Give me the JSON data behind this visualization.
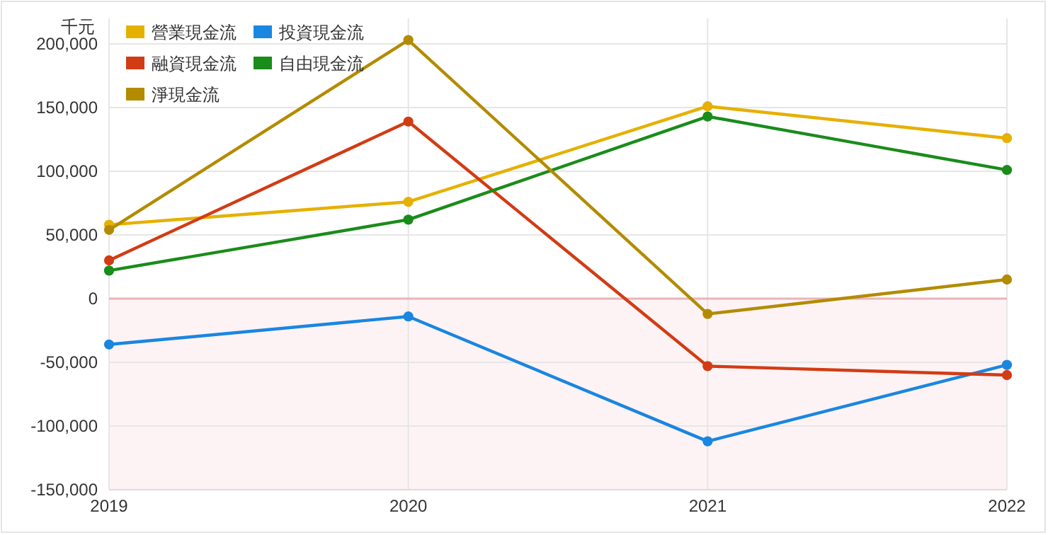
{
  "chart_data": {
    "type": "line",
    "ylabel": "千元",
    "categories": [
      "2019",
      "2020",
      "2021",
      "2022"
    ],
    "series": [
      {
        "name": "營業現金流",
        "color": "#e6b000",
        "values": [
          58000,
          76000,
          151000,
          126000
        ]
      },
      {
        "name": "投資現金流",
        "color": "#1a86e0",
        "values": [
          -36000,
          -14000,
          -112000,
          -52000
        ]
      },
      {
        "name": "融資現金流",
        "color": "#d23c14",
        "values": [
          30000,
          139000,
          -53000,
          -60000
        ]
      },
      {
        "name": "自由現金流",
        "color": "#1a8c1a",
        "values": [
          22000,
          62000,
          143000,
          101000
        ]
      },
      {
        "name": "淨現金流",
        "color": "#b38b00",
        "values": [
          54000,
          203000,
          -12000,
          15000
        ]
      }
    ],
    "ylim": [
      -150000,
      220000
    ],
    "yticks": [
      {
        "value": -150000,
        "label": "-150,000"
      },
      {
        "value": -100000,
        "label": "-100,000"
      },
      {
        "value": -50000,
        "label": "-50,000"
      },
      0,
      {
        "value": 50000,
        "label": "50,000"
      },
      {
        "value": 100000,
        "label": "100,000"
      },
      {
        "value": 150000,
        "label": "150,000"
      },
      {
        "value": 200000,
        "label": "200,000"
      }
    ],
    "grid": true,
    "legend": "top left",
    "marker": "circle",
    "line_style": "solid",
    "ref_lines": [
      {
        "axis": "y",
        "value": 0,
        "color": "#e8b4b8"
      }
    ],
    "bands": [
      {
        "axis": "y",
        "from": -150000,
        "to": 0,
        "color": "#fdf3f5"
      }
    ]
  }
}
